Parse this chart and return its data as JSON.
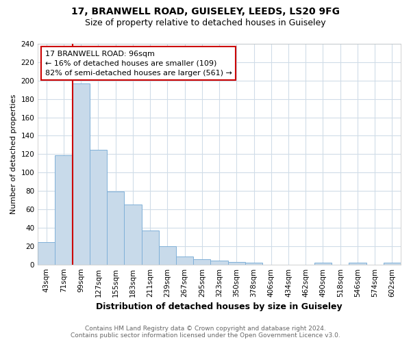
{
  "title1": "17, BRANWELL ROAD, GUISELEY, LEEDS, LS20 9FG",
  "title2": "Size of property relative to detached houses in Guiseley",
  "xlabel": "Distribution of detached houses by size in Guiseley",
  "ylabel": "Number of detached properties",
  "bins": [
    "43sqm",
    "71sqm",
    "99sqm",
    "127sqm",
    "155sqm",
    "183sqm",
    "211sqm",
    "239sqm",
    "267sqm",
    "295sqm",
    "323sqm",
    "350sqm",
    "378sqm",
    "406sqm",
    "434sqm",
    "462sqm",
    "490sqm",
    "518sqm",
    "546sqm",
    "574sqm",
    "602sqm"
  ],
  "values": [
    24,
    119,
    197,
    125,
    79,
    65,
    37,
    20,
    9,
    6,
    4,
    3,
    2,
    0,
    0,
    0,
    2,
    0,
    2,
    0,
    2
  ],
  "bar_color": "#c8daea",
  "bar_edge_color": "#7fb0d8",
  "red_line_x": 1.5,
  "annotation_title": "17 BRANWELL ROAD: 96sqm",
  "annotation_line1": "← 16% of detached houses are smaller (109)",
  "annotation_line2": "82% of semi-detached houses are larger (561) →",
  "annotation_box_color": "#ffffff",
  "annotation_box_edge_color": "#cc0000",
  "ylim": [
    0,
    240
  ],
  "yticks": [
    0,
    20,
    40,
    60,
    80,
    100,
    120,
    140,
    160,
    180,
    200,
    220,
    240
  ],
  "footer1": "Contains HM Land Registry data © Crown copyright and database right 2024.",
  "footer2": "Contains public sector information licensed under the Open Government Licence v3.0.",
  "bg_color": "#ffffff",
  "plot_bg_color": "#ffffff",
  "grid_color": "#d0dce8",
  "title1_fontsize": 10,
  "title2_fontsize": 9,
  "ylabel_fontsize": 8,
  "xlabel_fontsize": 9,
  "tick_fontsize": 7.5,
  "annotation_fontsize": 8,
  "footer_fontsize": 6.5
}
